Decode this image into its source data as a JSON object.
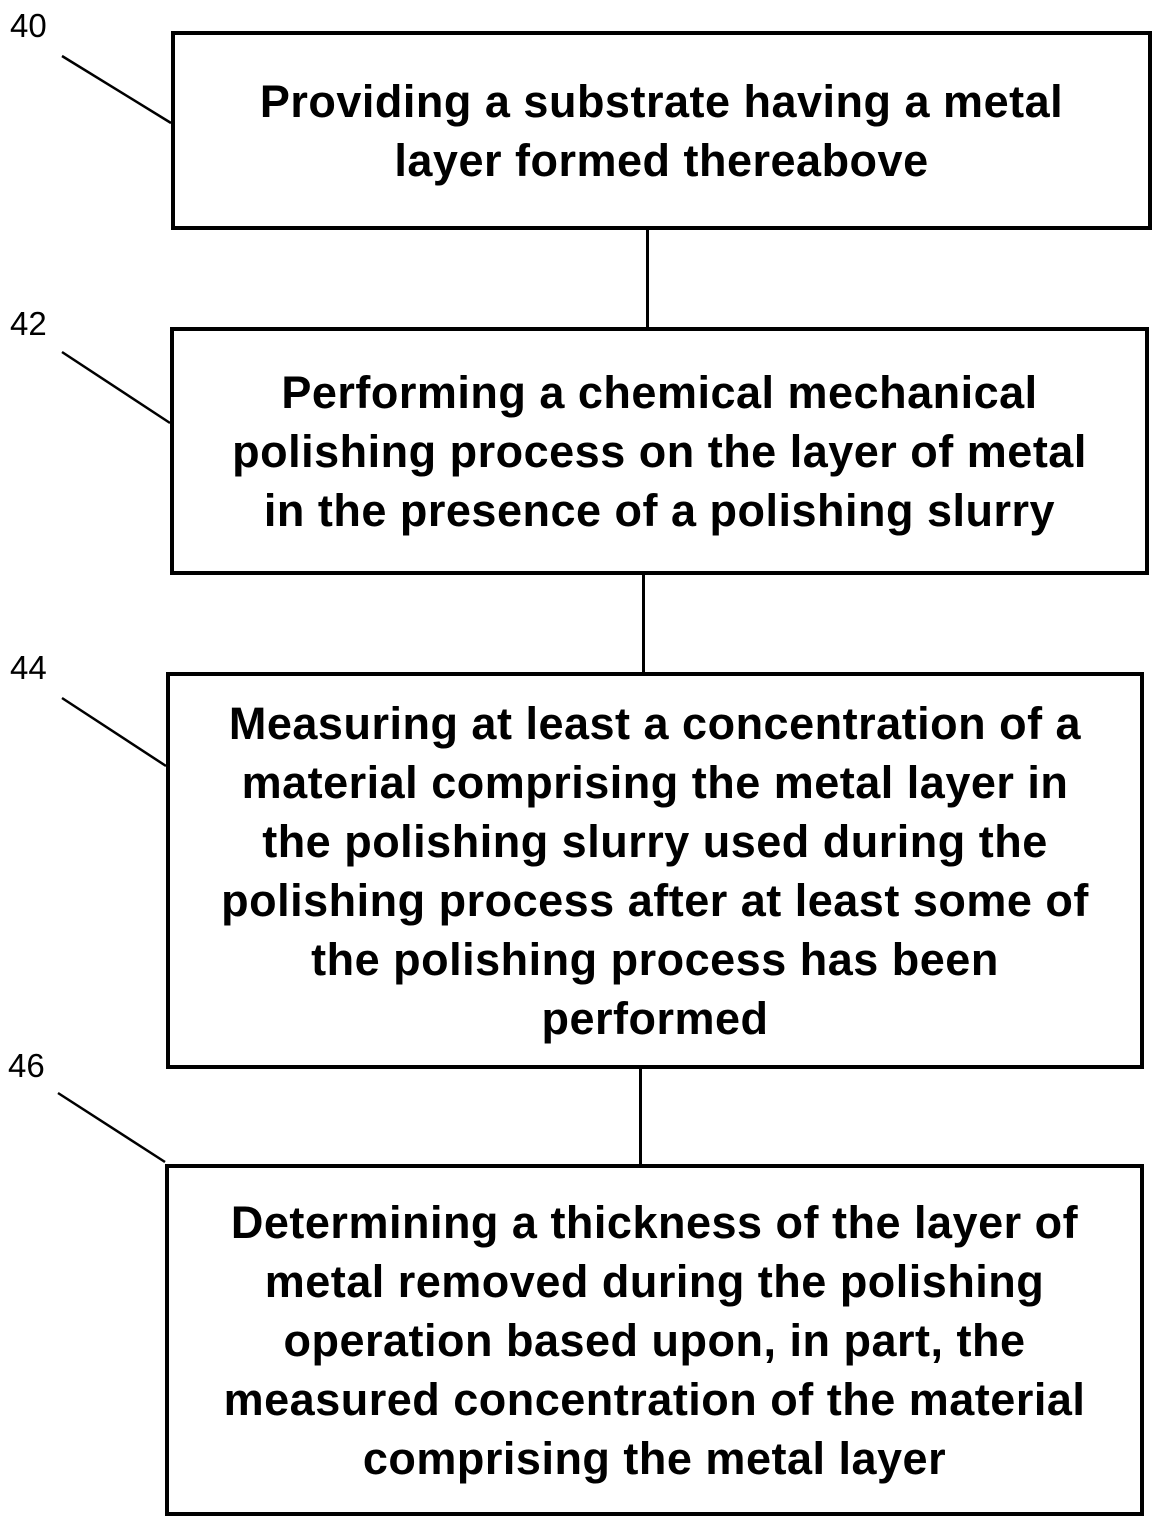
{
  "steps": [
    {
      "ref": "40",
      "text": "Providing a substrate having a metal\nlayer formed thereabove"
    },
    {
      "ref": "42",
      "text": "Performing a chemical mechanical\npolishing process on the layer of metal\nin the presence of a polishing slurry"
    },
    {
      "ref": "44",
      "text": "Measuring at least a concentration of a\nmaterial comprising the metal layer in\nthe polishing slurry used during the\npolishing process after at least some of\nthe polishing process has been\nperformed"
    },
    {
      "ref": "46",
      "text": "Determining a thickness of the layer of\nmetal removed during the polishing\noperation based upon, in part, the\nmeasured concentration of the material\ncomprising the metal layer"
    }
  ]
}
